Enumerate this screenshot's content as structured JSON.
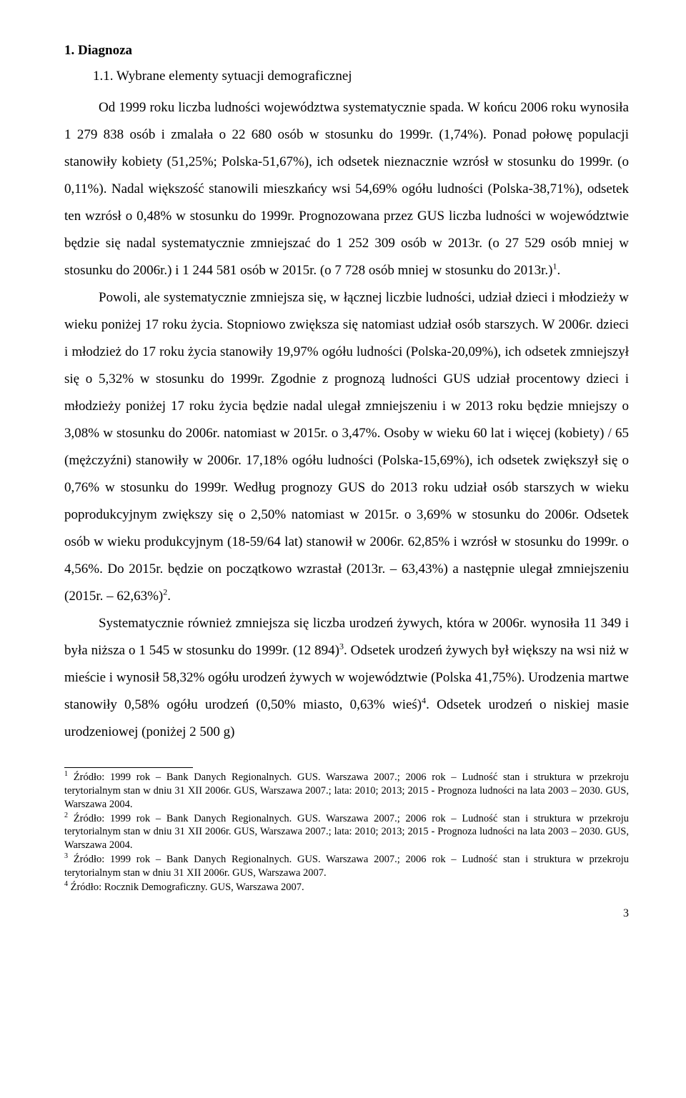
{
  "heading1": "1. Diagnoza",
  "heading2": "1.1. Wybrane elementy sytuacji demograficznej",
  "para1": "Od 1999 roku liczba ludności województwa systematycznie spada. W końcu 2006 roku wynosiła 1 279 838 osób i zmalała o 22 680 osób w stosunku do 1999r. (1,74%). Ponad połowę populacji stanowiły kobiety (51,25%; Polska-51,67%), ich odsetek nieznacznie wzrósł w stosunku do 1999r. (o 0,11%). Nadal większość stanowili mieszkańcy wsi 54,69% ogółu ludności (Polska-38,71%), odsetek ten wzrósł o 0,48% w stosunku do 1999r. Prognozowana przez GUS liczba ludności w województwie będzie się nadal systematycznie zmniejszać do 1 252 309 osób w 2013r. (o 27 529 osób mniej w stosunku do 2006r.) i 1 244 581 osób w 2015r. (o 7 728 osób mniej w stosunku do 2013r.)",
  "para1_sup": "1",
  "para1_end": ".",
  "para2a": "Powoli, ale systematycznie zmniejsza się, w łącznej liczbie ludności, udział dzieci i młodzieży w wieku poniżej 17 roku życia. Stopniowo zwiększa się natomiast udział osób starszych. W 2006r. dzieci i młodzież do 17 roku życia stanowiły 19,97% ogółu ludności (Polska-20,09%), ich odsetek zmniejszył się o 5,32% w stosunku do 1999r. Zgodnie z prognozą ludności GUS udział procentowy dzieci i młodzieży poniżej 17 roku życia będzie nadal ulegał zmniejszeniu i w 2013 roku będzie mniejszy o 3,08% w stosunku do 2006r. natomiast w 2015r. o 3,47%. Osoby w wieku 60 lat i więcej (kobiety) / 65 (mężczyźni) stanowiły w 2006r. 17,18% ogółu ludności (Polska-15,69%), ich odsetek zwiększył się o 0,76% w stosunku do 1999r. Według prognozy GUS do 2013 roku udział osób starszych w wieku poprodukcyjnym zwiększy się o 2,50% natomiast w 2015r. o 3,69% w stosunku do 2006r. Odsetek osób w wieku produkcyjnym (18-59/64 lat) stanowił w 2006r. 62,85% i wzrósł w stosunku do 1999r. o 4,56%. Do 2015r. będzie on początkowo wzrastał (2013r. – 63,43%) a następnie ulegał zmniejszeniu (2015r. – 62,63%)",
  "para2_sup": "2",
  "para2_end": ".",
  "para3a": "Systematycznie również zmniejsza się liczba urodzeń żywych, która w 2006r. wynosiła 11 349 i była niższa o 1 545 w stosunku do 1999r. (12 894)",
  "para3_sup1": "3",
  "para3b": ". Odsetek urodzeń żywych był większy na wsi niż w mieście i wynosił 58,32% ogółu urodzeń żywych w województwie (Polska 41,75%). Urodzenia martwe stanowiły 0,58% ogółu urodzeń (0,50% miasto, 0,63% wieś)",
  "para3_sup2": "4",
  "para3c": ". Odsetek urodzeń o niskiej masie urodzeniowej (poniżej 2 500 g)",
  "footnotes": {
    "f1_num": "1",
    "f1": " Źródło: 1999 rok – Bank Danych Regionalnych. GUS. Warszawa 2007.; 2006 rok – Ludność stan i struktura w przekroju terytorialnym stan w dniu 31 XII 2006r. GUS, Warszawa 2007.; lata: 2010; 2013; 2015 - Prognoza ludności na lata 2003 – 2030. GUS, Warszawa 2004.",
    "f2_num": "2",
    "f2": " Źródło: 1999 rok – Bank Danych Regionalnych. GUS. Warszawa 2007.; 2006 rok – Ludność stan i struktura w przekroju terytorialnym stan w dniu 31 XII 2006r. GUS, Warszawa 2007.; lata: 2010; 2013; 2015 - Prognoza ludności na lata 2003 – 2030. GUS, Warszawa 2004.",
    "f3_num": "3",
    "f3": " Źródło: 1999 rok – Bank Danych Regionalnych. GUS. Warszawa 2007.; 2006 rok – Ludność stan i struktura w przekroju terytorialnym stan w dniu 31 XII 2006r. GUS, Warszawa 2007.",
    "f4_num": "4",
    "f4": " Źródło: Rocznik Demograficzny. GUS, Warszawa 2007."
  },
  "page_number": "3"
}
